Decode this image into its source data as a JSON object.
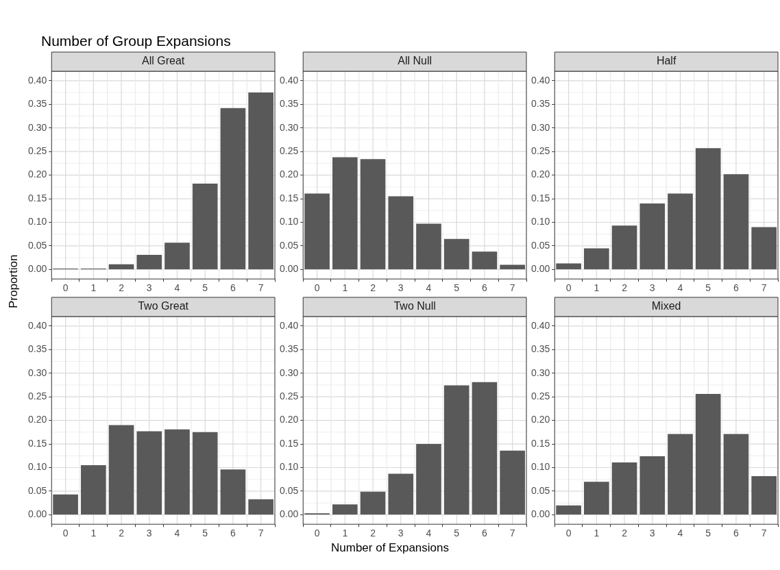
{
  "chart_data": [
    {
      "type": "bar",
      "title": "All Great",
      "annotations": [
        "Number of Group Expansions"
      ],
      "ylabel": "Proportion",
      "categories": [
        "0",
        "1",
        "2",
        "3",
        "4",
        "5",
        "6",
        "7"
      ],
      "values": [
        0.001,
        0.002,
        0.011,
        0.031,
        0.057,
        0.182,
        0.342,
        0.375
      ],
      "color": "#595959",
      "ylim": [
        -0.02,
        0.42
      ],
      "yticks": [
        {
          "value": 0,
          "label": "0.00"
        },
        {
          "value": 0.025,
          "label": null
        },
        {
          "value": 0.05,
          "label": "0.05"
        },
        {
          "value": 0.075,
          "label": null
        },
        {
          "value": 0.1,
          "label": "0.10"
        },
        {
          "value": 0.125,
          "label": null
        },
        {
          "value": 0.15,
          "label": "0.15"
        },
        {
          "value": 0.175,
          "label": null
        },
        {
          "value": 0.2,
          "label": "0.20"
        },
        {
          "value": 0.225,
          "label": null
        },
        {
          "value": 0.25,
          "label": "0.25"
        },
        {
          "value": 0.275,
          "label": null
        },
        {
          "value": 0.3,
          "label": "0.30"
        },
        {
          "value": 0.325,
          "label": null
        },
        {
          "value": 0.35,
          "label": "0.35"
        },
        {
          "value": 0.375,
          "label": null
        },
        {
          "value": 0.4,
          "label": "0.40"
        }
      ],
      "grid": true
    },
    {
      "type": "bar",
      "title": "All Null",
      "categories": [
        "0",
        "1",
        "2",
        "3",
        "4",
        "5",
        "6",
        "7"
      ],
      "values": [
        0.161,
        0.238,
        0.234,
        0.155,
        0.097,
        0.065,
        0.038,
        0.01
      ],
      "color": "#595959",
      "ylim": [
        -0.02,
        0.42
      ],
      "yticks": [
        {
          "value": 0,
          "label": "0.00"
        },
        {
          "value": 0.025,
          "label": null
        },
        {
          "value": 0.05,
          "label": "0.05"
        },
        {
          "value": 0.075,
          "label": null
        },
        {
          "value": 0.1,
          "label": "0.10"
        },
        {
          "value": 0.125,
          "label": null
        },
        {
          "value": 0.15,
          "label": "0.15"
        },
        {
          "value": 0.175,
          "label": null
        },
        {
          "value": 0.2,
          "label": "0.20"
        },
        {
          "value": 0.225,
          "label": null
        },
        {
          "value": 0.25,
          "label": "0.25"
        },
        {
          "value": 0.275,
          "label": null
        },
        {
          "value": 0.3,
          "label": "0.30"
        },
        {
          "value": 0.325,
          "label": null
        },
        {
          "value": 0.35,
          "label": "0.35"
        },
        {
          "value": 0.375,
          "label": null
        },
        {
          "value": 0.4,
          "label": "0.40"
        }
      ],
      "grid": true
    },
    {
      "type": "bar",
      "title": "Half",
      "categories": [
        "0",
        "1",
        "2",
        "3",
        "4",
        "5",
        "6",
        "7"
      ],
      "values": [
        0.013,
        0.045,
        0.093,
        0.14,
        0.161,
        0.257,
        0.202,
        0.09
      ],
      "color": "#595959",
      "ylim": [
        -0.02,
        0.42
      ],
      "yticks": [
        {
          "value": 0,
          "label": "0.00"
        },
        {
          "value": 0.025,
          "label": null
        },
        {
          "value": 0.05,
          "label": "0.05"
        },
        {
          "value": 0.075,
          "label": null
        },
        {
          "value": 0.1,
          "label": "0.10"
        },
        {
          "value": 0.125,
          "label": null
        },
        {
          "value": 0.15,
          "label": "0.15"
        },
        {
          "value": 0.175,
          "label": null
        },
        {
          "value": 0.2,
          "label": "0.20"
        },
        {
          "value": 0.225,
          "label": null
        },
        {
          "value": 0.25,
          "label": "0.25"
        },
        {
          "value": 0.275,
          "label": null
        },
        {
          "value": 0.3,
          "label": "0.30"
        },
        {
          "value": 0.325,
          "label": null
        },
        {
          "value": 0.35,
          "label": "0.35"
        },
        {
          "value": 0.375,
          "label": null
        },
        {
          "value": 0.4,
          "label": "0.40"
        }
      ],
      "grid": true
    },
    {
      "type": "bar",
      "title": "Two Great",
      "categories": [
        "0",
        "1",
        "2",
        "3",
        "4",
        "5",
        "6",
        "7"
      ],
      "values": [
        0.043,
        0.105,
        0.19,
        0.177,
        0.181,
        0.175,
        0.096,
        0.033
      ],
      "color": "#595959",
      "ylim": [
        -0.02,
        0.42
      ],
      "yticks": [
        {
          "value": 0,
          "label": "0.00"
        },
        {
          "value": 0.025,
          "label": null
        },
        {
          "value": 0.05,
          "label": "0.05"
        },
        {
          "value": 0.075,
          "label": null
        },
        {
          "value": 0.1,
          "label": "0.10"
        },
        {
          "value": 0.125,
          "label": null
        },
        {
          "value": 0.15,
          "label": "0.15"
        },
        {
          "value": 0.175,
          "label": null
        },
        {
          "value": 0.2,
          "label": "0.20"
        },
        {
          "value": 0.225,
          "label": null
        },
        {
          "value": 0.25,
          "label": "0.25"
        },
        {
          "value": 0.275,
          "label": null
        },
        {
          "value": 0.3,
          "label": "0.30"
        },
        {
          "value": 0.325,
          "label": null
        },
        {
          "value": 0.35,
          "label": "0.35"
        },
        {
          "value": 0.375,
          "label": null
        },
        {
          "value": 0.4,
          "label": "0.40"
        }
      ],
      "grid": true
    },
    {
      "type": "bar",
      "title": "Two Null",
      "xlabel": "Number of Expansions",
      "categories": [
        "0",
        "1",
        "2",
        "3",
        "4",
        "5",
        "6",
        "7"
      ],
      "values": [
        0.003,
        0.022,
        0.049,
        0.087,
        0.15,
        0.274,
        0.281,
        0.136
      ],
      "color": "#595959",
      "ylim": [
        -0.02,
        0.42
      ],
      "yticks": [
        {
          "value": 0,
          "label": "0.00"
        },
        {
          "value": 0.025,
          "label": null
        },
        {
          "value": 0.05,
          "label": "0.05"
        },
        {
          "value": 0.075,
          "label": null
        },
        {
          "value": 0.1,
          "label": "0.10"
        },
        {
          "value": 0.125,
          "label": null
        },
        {
          "value": 0.15,
          "label": "0.15"
        },
        {
          "value": 0.175,
          "label": null
        },
        {
          "value": 0.2,
          "label": "0.20"
        },
        {
          "value": 0.225,
          "label": null
        },
        {
          "value": 0.25,
          "label": "0.25"
        },
        {
          "value": 0.275,
          "label": null
        },
        {
          "value": 0.3,
          "label": "0.30"
        },
        {
          "value": 0.325,
          "label": null
        },
        {
          "value": 0.35,
          "label": "0.35"
        },
        {
          "value": 0.375,
          "label": null
        },
        {
          "value": 0.4,
          "label": "0.40"
        }
      ],
      "grid": true
    },
    {
      "type": "bar",
      "title": "Mixed",
      "categories": [
        "0",
        "1",
        "2",
        "3",
        "4",
        "5",
        "6",
        "7"
      ],
      "values": [
        0.02,
        0.07,
        0.111,
        0.124,
        0.171,
        0.256,
        0.171,
        0.082
      ],
      "color": "#595959",
      "ylim": [
        -0.02,
        0.42
      ],
      "yticks": [
        {
          "value": 0,
          "label": "0.00"
        },
        {
          "value": 0.025,
          "label": null
        },
        {
          "value": 0.05,
          "label": "0.05"
        },
        {
          "value": 0.075,
          "label": null
        },
        {
          "value": 0.1,
          "label": "0.10"
        },
        {
          "value": 0.125,
          "label": null
        },
        {
          "value": 0.15,
          "label": "0.15"
        },
        {
          "value": 0.175,
          "label": null
        },
        {
          "value": 0.2,
          "label": "0.20"
        },
        {
          "value": 0.225,
          "label": null
        },
        {
          "value": 0.25,
          "label": "0.25"
        },
        {
          "value": 0.275,
          "label": null
        },
        {
          "value": 0.3,
          "label": "0.30"
        },
        {
          "value": 0.325,
          "label": null
        },
        {
          "value": 0.35,
          "label": "0.35"
        },
        {
          "value": 0.375,
          "label": null
        },
        {
          "value": 0.4,
          "label": "0.40"
        }
      ],
      "grid": true
    }
  ]
}
